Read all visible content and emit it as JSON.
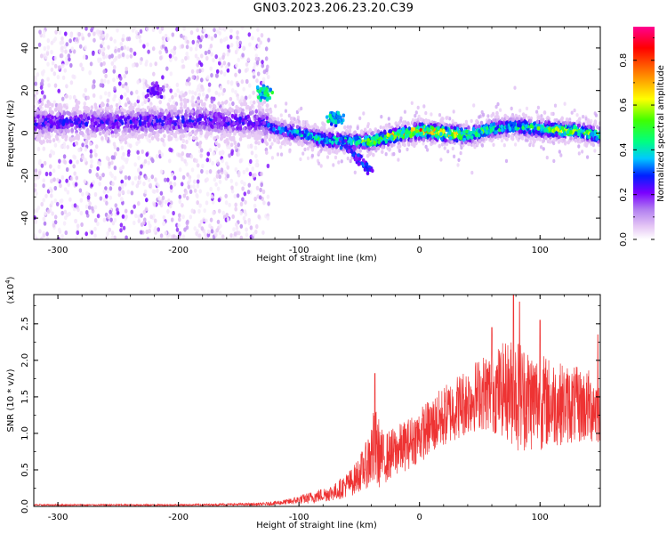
{
  "figure": {
    "title": "GN03.2023.206.23.20.C39"
  },
  "chart_data": [
    {
      "type": "heatmap",
      "panel": "top",
      "xlabel": "Height of straight line (km)",
      "ylabel": "Frequency (Hz)",
      "xlim": [
        -320,
        150
      ],
      "ylim": [
        -50,
        50
      ],
      "xticks": [
        -300,
        -200,
        -100,
        0,
        100
      ],
      "yticks": [
        -40,
        -20,
        0,
        20,
        40
      ],
      "xtick_labels": [
        "-300",
        "-200",
        "-100",
        "0",
        "100"
      ],
      "ytick_labels": [
        "-40",
        "-20",
        "0",
        "20",
        "40"
      ],
      "colorbar": {
        "label": "Normalized spectral amplitude",
        "range": [
          0,
          0.95
        ],
        "ticks": [
          0.0,
          0.2,
          0.4,
          0.6,
          0.8
        ],
        "tick_labels": [
          "0.0",
          "0.2",
          "0.4",
          "0.6",
          "0.8"
        ],
        "colormap": [
          "#ffffff",
          "#e6c8f5",
          "#b27ff0",
          "#7a00ff",
          "#0020ff",
          "#00c8ff",
          "#00ff80",
          "#40ff00",
          "#ffff00",
          "#ff8000",
          "#ff0000",
          "#ff0090"
        ]
      },
      "noise_region_x": [
        -320,
        -125
      ],
      "band": {
        "center_track": [
          {
            "x": -320,
            "y": 5
          },
          {
            "x": -250,
            "y": 5
          },
          {
            "x": -180,
            "y": 6
          },
          {
            "x": -130,
            "y": 5
          },
          {
            "x": -120,
            "y": 2
          },
          {
            "x": -100,
            "y": 0
          },
          {
            "x": -80,
            "y": -3
          },
          {
            "x": -60,
            "y": -4
          },
          {
            "x": -40,
            "y": -4
          },
          {
            "x": -20,
            "y": -1
          },
          {
            "x": 0,
            "y": 1
          },
          {
            "x": 20,
            "y": 0
          },
          {
            "x": 40,
            "y": -1
          },
          {
            "x": 60,
            "y": 2
          },
          {
            "x": 80,
            "y": 3
          },
          {
            "x": 100,
            "y": 2
          },
          {
            "x": 130,
            "y": 1
          },
          {
            "x": 150,
            "y": -1
          }
        ],
        "peak_amplitude_by_x": [
          {
            "x": -320,
            "a": 0.35
          },
          {
            "x": -130,
            "a": 0.35
          },
          {
            "x": -120,
            "a": 0.45
          },
          {
            "x": -90,
            "a": 0.55
          },
          {
            "x": -60,
            "a": 0.6
          },
          {
            "x": -30,
            "a": 0.75
          },
          {
            "x": 0,
            "a": 0.9
          },
          {
            "x": 30,
            "a": 0.8
          },
          {
            "x": 60,
            "a": 0.6
          },
          {
            "x": 90,
            "a": 0.6
          },
          {
            "x": 120,
            "a": 0.75
          },
          {
            "x": 150,
            "a": 0.65
          }
        ]
      },
      "features": [
        {
          "kind": "blob",
          "x": -220,
          "y": 20,
          "a": 0.3
        },
        {
          "kind": "blob",
          "x": -130,
          "y": 19,
          "a": 0.6
        },
        {
          "kind": "blob",
          "x": -70,
          "y": 7,
          "a": 0.55
        },
        {
          "kind": "streak",
          "x0": -65,
          "y0": -4,
          "x1": -40,
          "y1": -18,
          "a": 0.4
        }
      ]
    },
    {
      "type": "line",
      "panel": "bottom",
      "xlabel": "Height of straight line (km)",
      "ylabel": "SNR (10 * v/v)",
      "ylabel_multiplier": "(x10",
      "ylabel_multiplier_exp": "4",
      "ylabel_multiplier_close": ")",
      "xlim": [
        -320,
        150
      ],
      "ylim": [
        0,
        2.9
      ],
      "xticks": [
        -300,
        -200,
        -100,
        0,
        100
      ],
      "yticks": [
        0.0,
        0.5,
        1.0,
        1.5,
        2.0,
        2.5
      ],
      "xtick_labels": [
        "-300",
        "-200",
        "-100",
        "0",
        "100"
      ],
      "ytick_labels": [
        "0.0",
        "0.5",
        "1.0",
        "1.5",
        "2.0",
        "2.5"
      ],
      "series": [
        {
          "color": "#ee3333",
          "envelope": [
            {
              "x": -320,
              "mean": 0.02,
              "amp": 0.01
            },
            {
              "x": -200,
              "mean": 0.02,
              "amp": 0.01
            },
            {
              "x": -130,
              "mean": 0.03,
              "amp": 0.02
            },
            {
              "x": -110,
              "mean": 0.06,
              "amp": 0.04
            },
            {
              "x": -90,
              "mean": 0.12,
              "amp": 0.08
            },
            {
              "x": -70,
              "mean": 0.2,
              "amp": 0.12
            },
            {
              "x": -55,
              "mean": 0.35,
              "amp": 0.2
            },
            {
              "x": -45,
              "mean": 0.55,
              "amp": 0.3
            },
            {
              "x": -37,
              "mean": 0.8,
              "amp": 0.6
            },
            {
              "x": -30,
              "mean": 0.65,
              "amp": 0.35
            },
            {
              "x": -10,
              "mean": 0.85,
              "amp": 0.35
            },
            {
              "x": 10,
              "mean": 1.1,
              "amp": 0.4
            },
            {
              "x": 30,
              "mean": 1.35,
              "amp": 0.45
            },
            {
              "x": 50,
              "mean": 1.55,
              "amp": 0.5
            },
            {
              "x": 70,
              "mean": 1.6,
              "amp": 0.65
            },
            {
              "x": 80,
              "mean": 1.55,
              "amp": 0.8
            },
            {
              "x": 95,
              "mean": 1.45,
              "amp": 0.7
            },
            {
              "x": 120,
              "mean": 1.4,
              "amp": 0.55
            },
            {
              "x": 150,
              "mean": 1.35,
              "amp": 0.5
            }
          ],
          "peaks": [
            {
              "x": -37,
              "y": 1.82
            },
            {
              "x": 78,
              "y": 2.95
            },
            {
              "x": 83,
              "y": 2.8
            },
            {
              "x": 60,
              "y": 2.45
            },
            {
              "x": 100,
              "y": 2.55
            },
            {
              "x": 148,
              "y": 2.35
            }
          ]
        }
      ]
    }
  ]
}
